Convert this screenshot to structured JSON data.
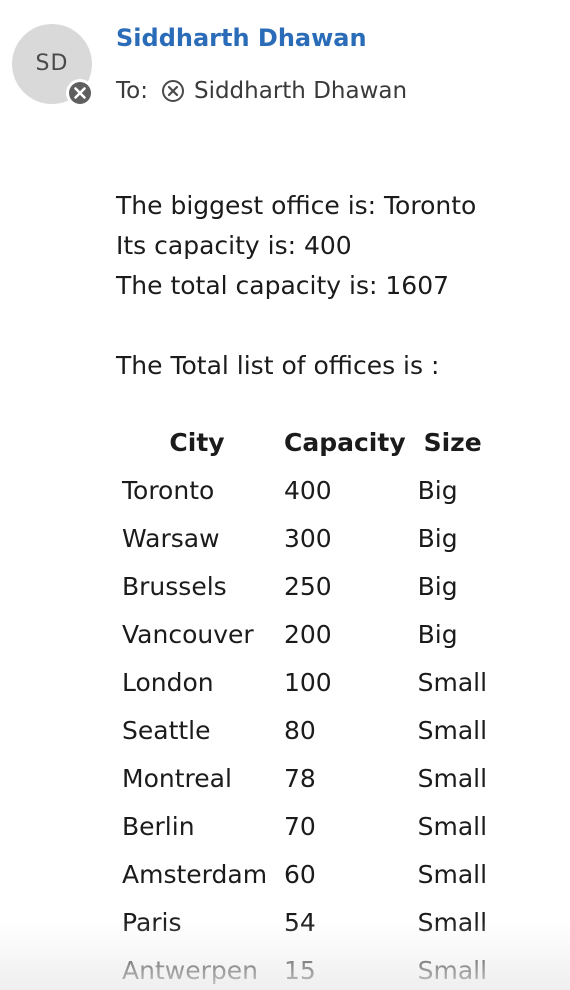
{
  "message": {
    "avatar_initials": "SD",
    "sender_name": "Siddharth Dhawan",
    "to_label": "To:",
    "recipients": [
      "Siddharth Dhawan"
    ],
    "body_lines": [
      "The biggest office is: Toronto",
      "Its capacity is: 400",
      "The total capacity is: 1607"
    ],
    "list_intro": "The Total list of offices is :"
  },
  "table": {
    "headers": [
      "City",
      "Capacity",
      "Size"
    ],
    "rows": [
      [
        "Toronto",
        "400",
        "Big"
      ],
      [
        "Warsaw",
        "300",
        "Big"
      ],
      [
        "Brussels",
        "250",
        "Big"
      ],
      [
        "Vancouver",
        "200",
        "Big"
      ],
      [
        "London",
        "100",
        "Small"
      ],
      [
        "Seattle",
        "80",
        "Small"
      ],
      [
        "Montreal",
        "78",
        "Small"
      ],
      [
        "Berlin",
        "70",
        "Small"
      ],
      [
        "Amsterdam",
        "60",
        "Small"
      ],
      [
        "Paris",
        "54",
        "Small"
      ],
      [
        "Antwerpen",
        "15",
        "Small"
      ]
    ]
  },
  "icons": {
    "avatar_badge": "remove-icon",
    "recipient_remove": "remove-icon"
  },
  "colors": {
    "sender": "#2b6cb8",
    "text": "#1b1b1b",
    "avatar_bg": "#d9d9d9"
  }
}
